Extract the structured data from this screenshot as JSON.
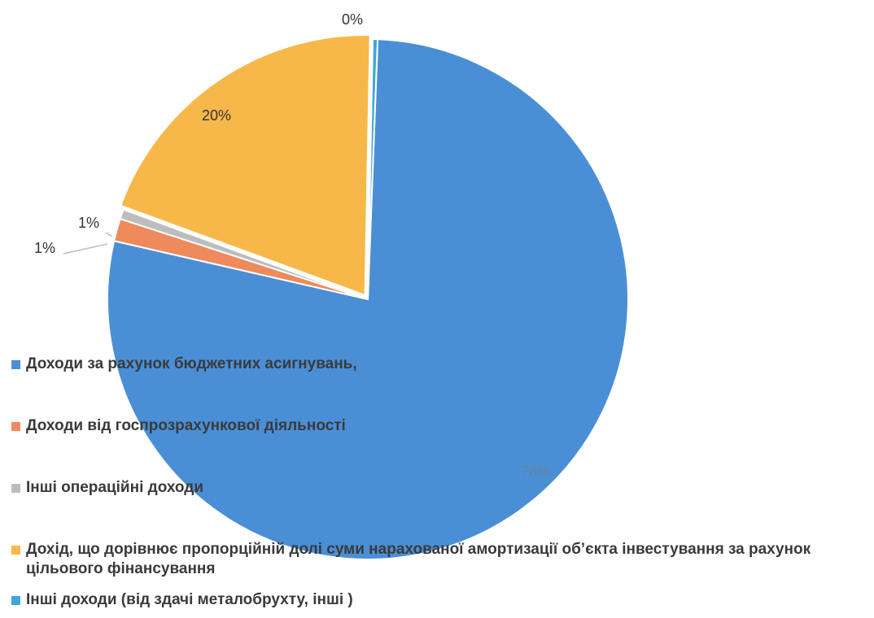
{
  "chart_data": {
    "type": "pie",
    "title": "",
    "labels": [
      "Доходи за рахунок бюджетних асигнувань",
      "Доходи від госпрозрахункової діяльності",
      "Інші операційні доходи",
      "Дохід, що дорівнює пропорційній долі суми нарахованої амортизації об’єкта інвестування за рахунок цільового фінансування",
      "Інші доходи (від здачі металобрухту, інші )"
    ],
    "values": [
      78,
      1.4,
      0.6,
      19.7,
      0.3
    ],
    "data_labels": [
      "78%",
      "1%",
      "1%",
      "20%",
      "0%"
    ],
    "colors": [
      "#4a8fd6",
      "#ee8a5c",
      "#bdbdbd",
      "#f7b84a",
      "#3fa7d9"
    ],
    "legend_position": "bottom-left, overlapping pie"
  },
  "legend": {
    "items": [
      {
        "label": "Доходи за рахунок бюджетних асигнувань,",
        "color": "#4a8fd6"
      },
      {
        "label": "Доходи від госпрозрахункової діяльності",
        "color": "#ee8a5c"
      },
      {
        "label": "Інші операційні доходи",
        "color": "#bdbdbd"
      },
      {
        "label": "Дохід, що дорівнює пропорційній долі суми нарахованої амортизації об’єкта інвестування за рахунок цільового фінансування",
        "color": "#f7b84a"
      },
      {
        "label": "Інші доходи (від здачі металобрухту, інші )",
        "color": "#3fa7d9"
      }
    ]
  }
}
